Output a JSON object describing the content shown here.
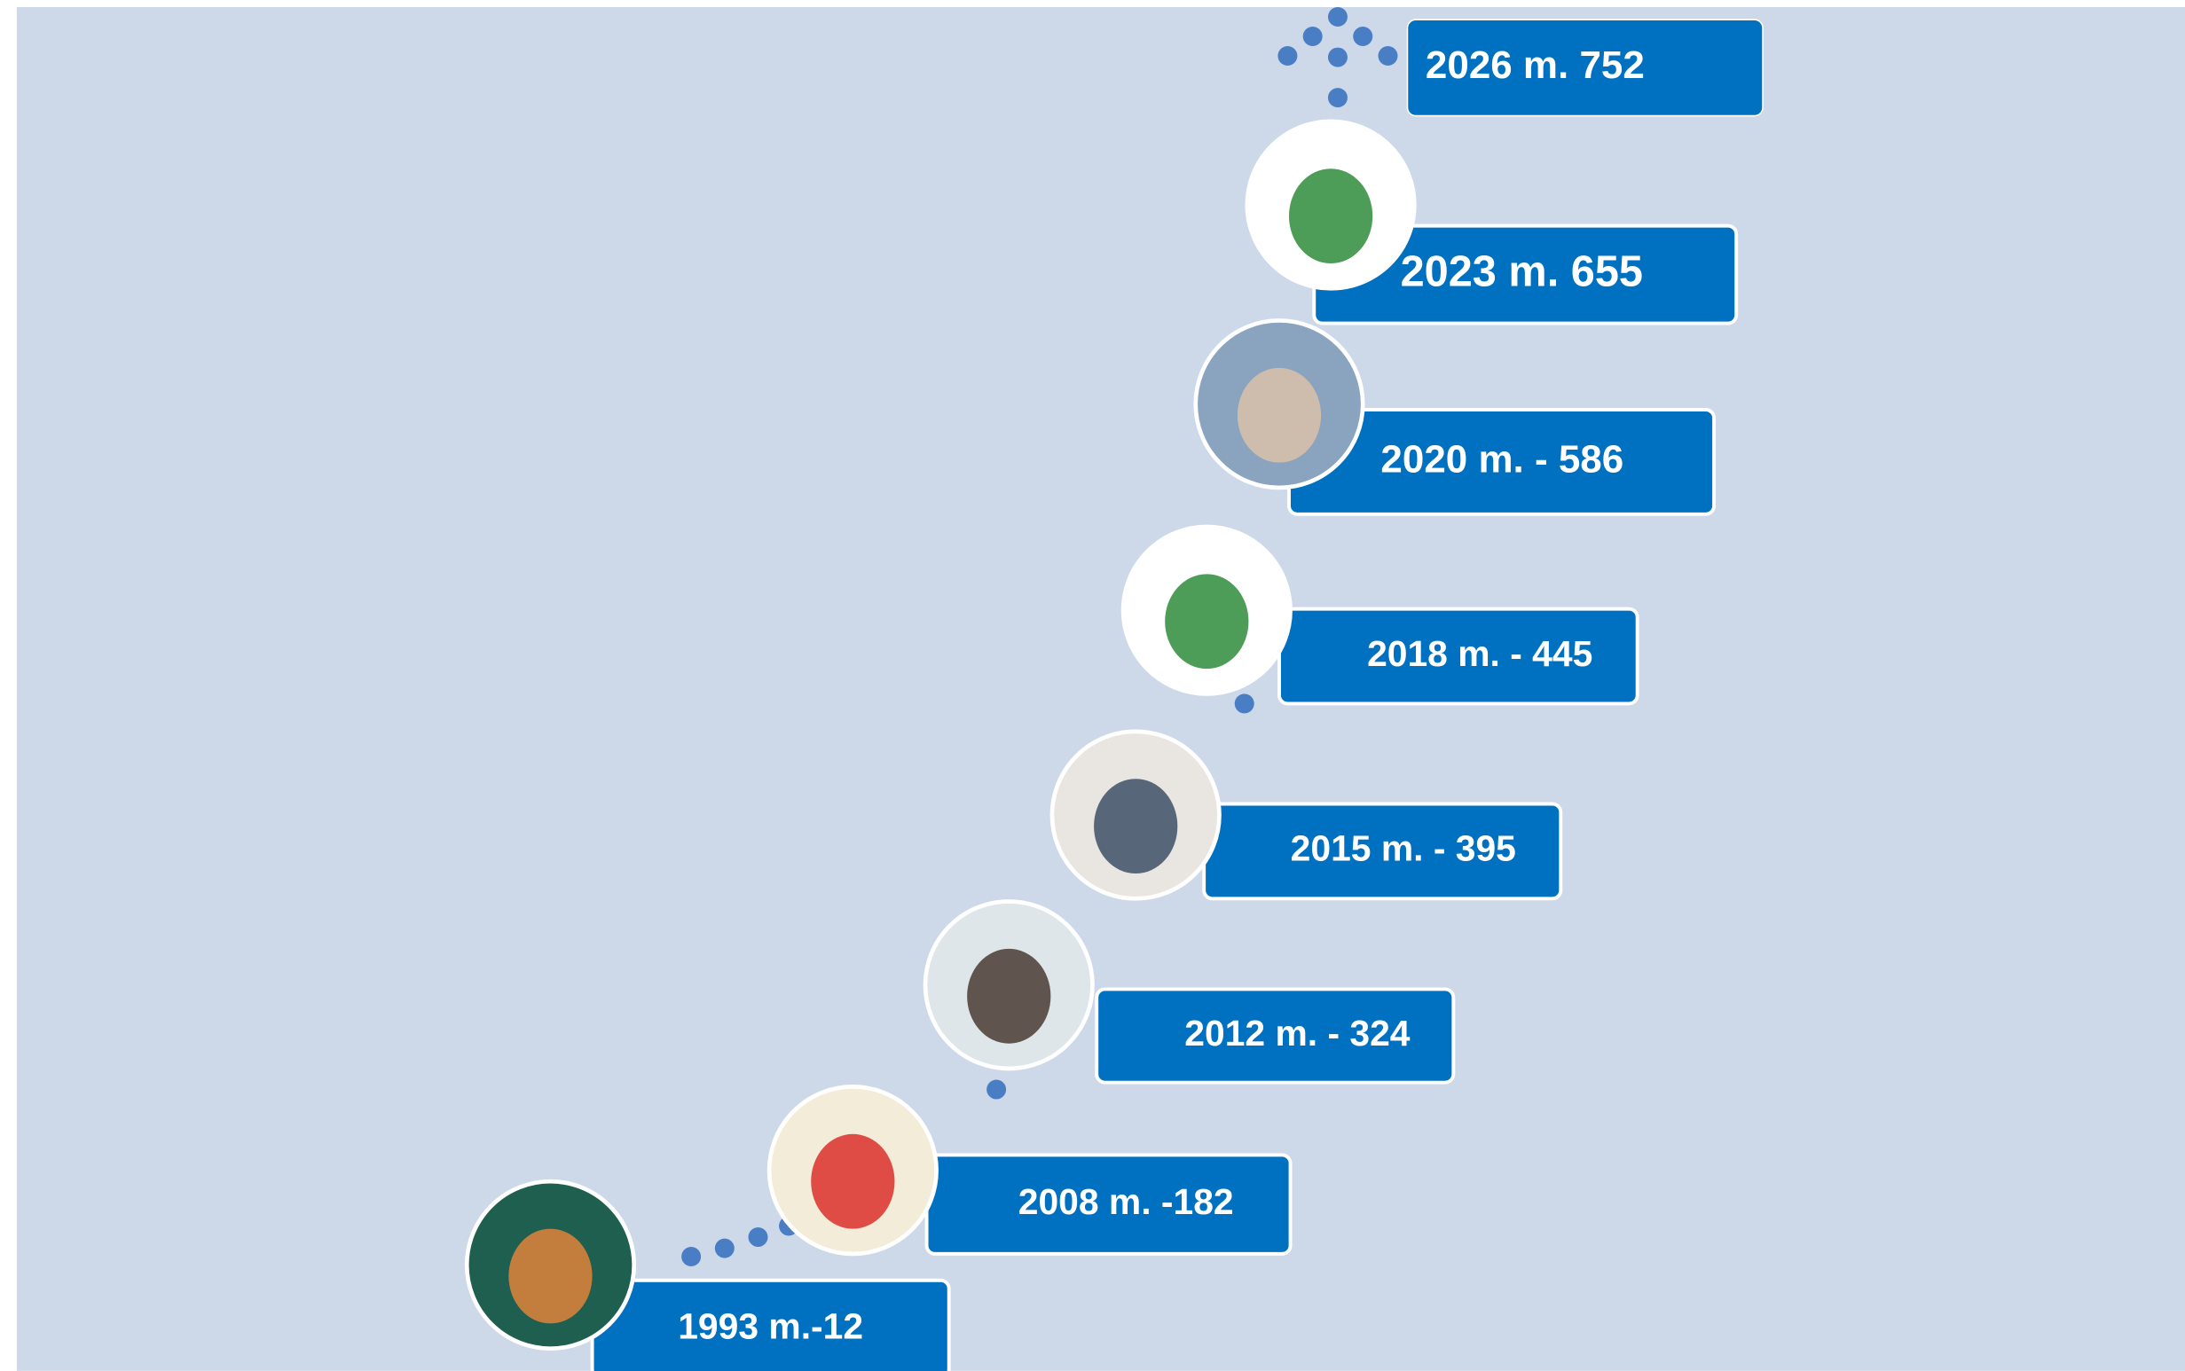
{
  "timeline": {
    "items": [
      {
        "label": "2026 m. 752"
      },
      {
        "label": "2023 m. 655"
      },
      {
        "label": "2020 m. - 586"
      },
      {
        "label": "2018 m. - 445"
      },
      {
        "label": "2015 m. - 395"
      },
      {
        "label": "2012 m. - 324"
      },
      {
        "label": "2008 m. -182"
      },
      {
        "label": "1993 m.-12"
      }
    ]
  }
}
